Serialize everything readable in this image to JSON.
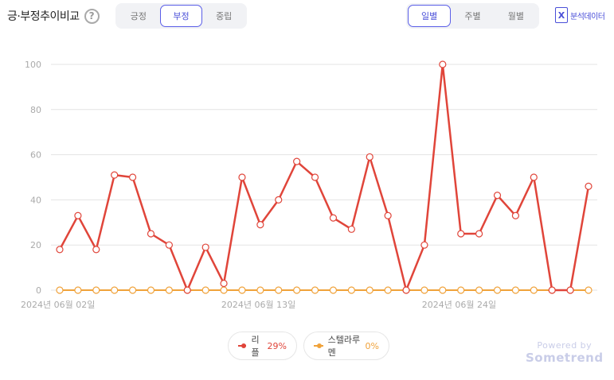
{
  "header": {
    "title": "긍·부정추이비교",
    "help_glyph": "?",
    "sentiment_tabs": [
      {
        "label": "긍정",
        "active": false
      },
      {
        "label": "부정",
        "active": true
      },
      {
        "label": "중립",
        "active": false
      }
    ],
    "period_tabs": [
      {
        "label": "일별",
        "active": true
      },
      {
        "label": "주별",
        "active": false
      },
      {
        "label": "월별",
        "active": false
      }
    ],
    "export_label": "분석데이터",
    "export_icon": "excel-icon"
  },
  "chart_data": {
    "type": "line",
    "x_ticks": [
      "2024년 06월 02일",
      "2024년 06월 13일",
      "2024년 06월 24일"
    ],
    "x_tick_index": [
      0,
      11,
      22
    ],
    "ylim": [
      0,
      100
    ],
    "yticks": [
      0,
      20,
      40,
      60,
      80,
      100
    ],
    "grid": true,
    "legend_position": "bottom",
    "series": [
      {
        "name": "리플",
        "share": "29%",
        "color": "#e0453a",
        "values": [
          18,
          33,
          18,
          51,
          50,
          25,
          20,
          0,
          19,
          3,
          50,
          29,
          40,
          57,
          50,
          32,
          27,
          59,
          33,
          0,
          20,
          100,
          25,
          25,
          42,
          33,
          50,
          0,
          0,
          46
        ]
      },
      {
        "name": "스텔라루멘",
        "share": "0%",
        "color": "#f0a23a",
        "values": [
          0,
          0,
          0,
          0,
          0,
          0,
          0,
          0,
          0,
          0,
          0,
          0,
          0,
          0,
          0,
          0,
          0,
          0,
          0,
          0,
          0,
          0,
          0,
          0,
          0,
          0,
          0,
          0,
          0,
          0
        ]
      }
    ]
  },
  "watermark": {
    "line1": "Powered by",
    "line2": "Sometrend"
  }
}
